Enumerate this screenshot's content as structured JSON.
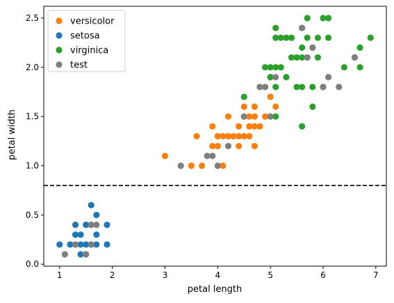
{
  "chart_data": {
    "type": "scatter",
    "xlabel": "petal length",
    "ylabel": "petal width",
    "xlim": [
      0.7,
      7.2
    ],
    "ylim": [
      -0.02,
      2.62
    ],
    "xticks": [
      1,
      2,
      3,
      4,
      5,
      6,
      7
    ],
    "yticks": [
      0.0,
      0.5,
      1.0,
      1.5,
      2.0,
      2.5
    ],
    "grid": false,
    "legend_position": "top-left",
    "reference_line": {
      "y": 0.8,
      "style": "dashed",
      "color": "#000000"
    },
    "series": [
      {
        "name": "versicolor",
        "color": "#ff7f0e",
        "points": [
          [
            3.0,
            1.1
          ],
          [
            3.5,
            1.0
          ],
          [
            3.6,
            1.3
          ],
          [
            3.7,
            1.0
          ],
          [
            3.9,
            1.4
          ],
          [
            3.9,
            1.2
          ],
          [
            4.0,
            1.3
          ],
          [
            4.0,
            1.2
          ],
          [
            4.1,
            1.3
          ],
          [
            4.1,
            1.0
          ],
          [
            4.2,
            1.3
          ],
          [
            4.3,
            1.3
          ],
          [
            4.4,
            1.4
          ],
          [
            4.4,
            1.3
          ],
          [
            4.4,
            1.2
          ],
          [
            4.5,
            1.5
          ],
          [
            4.5,
            1.3
          ],
          [
            4.6,
            1.5
          ],
          [
            4.6,
            1.4
          ],
          [
            4.6,
            1.3
          ],
          [
            4.7,
            1.6
          ],
          [
            4.7,
            1.5
          ],
          [
            4.7,
            1.4
          ],
          [
            4.7,
            1.2
          ],
          [
            4.8,
            1.8
          ],
          [
            4.8,
            1.4
          ],
          [
            4.2,
            1.5
          ],
          [
            4.5,
            1.6
          ],
          [
            4.9,
            1.5
          ],
          [
            5.0,
            1.7
          ],
          [
            5.1,
            1.6
          ]
        ]
      },
      {
        "name": "setosa",
        "color": "#1f77b4",
        "points": [
          [
            1.0,
            0.2
          ],
          [
            1.2,
            0.2
          ],
          [
            1.3,
            0.2
          ],
          [
            1.3,
            0.3
          ],
          [
            1.3,
            0.4
          ],
          [
            1.4,
            0.1
          ],
          [
            1.4,
            0.2
          ],
          [
            1.4,
            0.3
          ],
          [
            1.5,
            0.1
          ],
          [
            1.5,
            0.2
          ],
          [
            1.5,
            0.4
          ],
          [
            1.6,
            0.2
          ],
          [
            1.6,
            0.6
          ],
          [
            1.7,
            0.2
          ],
          [
            1.7,
            0.3
          ],
          [
            1.7,
            0.5
          ],
          [
            1.9,
            0.2
          ],
          [
            1.9,
            0.4
          ],
          [
            1.6,
            0.4
          ]
        ]
      },
      {
        "name": "virginica",
        "color": "#2ca02c",
        "points": [
          [
            4.5,
            1.7
          ],
          [
            4.9,
            2.0
          ],
          [
            5.0,
            2.0
          ],
          [
            5.0,
            1.9
          ],
          [
            5.1,
            2.4
          ],
          [
            5.1,
            2.3
          ],
          [
            5.1,
            2.0
          ],
          [
            5.1,
            1.8
          ],
          [
            5.1,
            1.5
          ],
          [
            5.2,
            2.3
          ],
          [
            5.2,
            2.0
          ],
          [
            5.3,
            2.3
          ],
          [
            5.3,
            1.9
          ],
          [
            5.4,
            2.3
          ],
          [
            5.4,
            2.1
          ],
          [
            5.5,
            2.1
          ],
          [
            5.5,
            1.8
          ],
          [
            5.6,
            2.4
          ],
          [
            5.6,
            2.2
          ],
          [
            5.6,
            2.1
          ],
          [
            5.6,
            1.8
          ],
          [
            5.6,
            1.4
          ],
          [
            5.7,
            2.5
          ],
          [
            5.7,
            2.3
          ],
          [
            5.8,
            2.2
          ],
          [
            5.8,
            1.8
          ],
          [
            5.8,
            1.6
          ],
          [
            5.9,
            2.3
          ],
          [
            5.9,
            2.1
          ],
          [
            6.0,
            2.5
          ],
          [
            6.0,
            1.8
          ],
          [
            6.1,
            2.5
          ],
          [
            6.1,
            2.3
          ],
          [
            6.4,
            2.0
          ],
          [
            6.6,
            2.1
          ],
          [
            6.7,
            2.2
          ],
          [
            6.7,
            2.0
          ],
          [
            6.9,
            2.3
          ],
          [
            5.0,
            1.9
          ],
          [
            5.7,
            2.1
          ]
        ]
      },
      {
        "name": "test",
        "color": "#7f7f7f",
        "points": [
          [
            1.1,
            0.1
          ],
          [
            1.3,
            0.2
          ],
          [
            1.5,
            0.1
          ],
          [
            1.6,
            0.2
          ],
          [
            1.6,
            0.4
          ],
          [
            1.7,
            0.4
          ],
          [
            3.3,
            1.0
          ],
          [
            3.8,
            1.1
          ],
          [
            3.9,
            1.1
          ],
          [
            4.0,
            1.0
          ],
          [
            4.2,
            1.2
          ],
          [
            4.5,
            1.5
          ],
          [
            4.8,
            1.8
          ],
          [
            4.9,
            1.8
          ],
          [
            5.0,
            1.5
          ],
          [
            5.1,
            1.9
          ],
          [
            5.6,
            2.4
          ],
          [
            5.7,
            2.1
          ],
          [
            5.8,
            2.2
          ],
          [
            6.0,
            1.8
          ],
          [
            6.1,
            1.9
          ],
          [
            6.3,
            1.8
          ],
          [
            6.6,
            2.1
          ],
          [
            5.0,
            1.5
          ]
        ]
      }
    ]
  }
}
